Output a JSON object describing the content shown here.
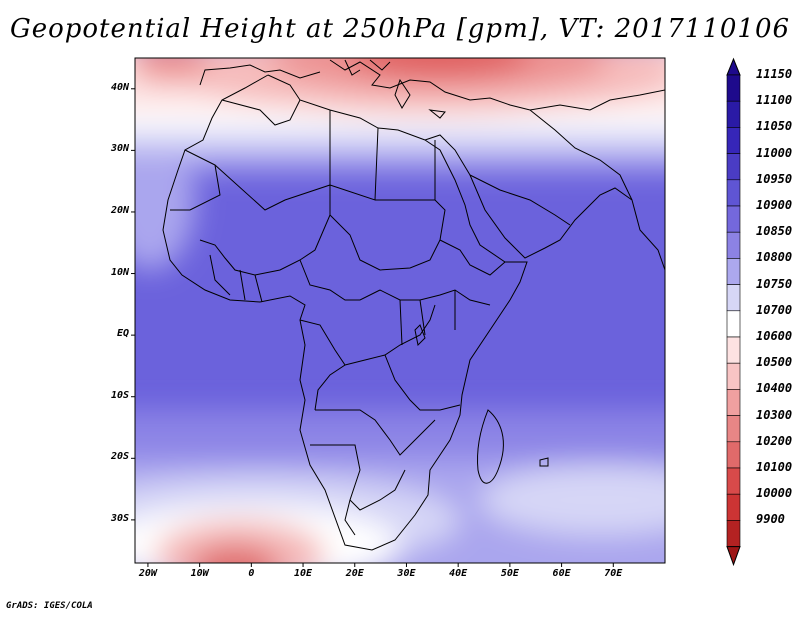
{
  "title": "Geopotential Height at 250hPa [gpm], VT: 2017110106",
  "credit": "GrADS: IGES/COLA",
  "lat_ticks": [
    {
      "label": "40N",
      "value": 40
    },
    {
      "label": "30N",
      "value": 30
    },
    {
      "label": "20N",
      "value": 20
    },
    {
      "label": "10N",
      "value": 10
    },
    {
      "label": "EQ",
      "value": 0
    },
    {
      "label": "10S",
      "value": -10
    },
    {
      "label": "20S",
      "value": -20
    },
    {
      "label": "30S",
      "value": -30
    }
  ],
  "lon_ticks": [
    {
      "label": "20W",
      "value": -20
    },
    {
      "label": "10W",
      "value": -10
    },
    {
      "label": "0",
      "value": 0
    },
    {
      "label": "10E",
      "value": 10
    },
    {
      "label": "20E",
      "value": 20
    },
    {
      "label": "30E",
      "value": 30
    },
    {
      "label": "40E",
      "value": 40
    },
    {
      "label": "50E",
      "value": 50
    },
    {
      "label": "60E",
      "value": 60
    },
    {
      "label": "70E",
      "value": 70
    }
  ],
  "colorbar": [
    {
      "label": "11150",
      "color": "#1e0a8c"
    },
    {
      "label": "11100",
      "color": "#2a1aa6"
    },
    {
      "label": "11050",
      "color": "#3626b8"
    },
    {
      "label": "11000",
      "color": "#4a3cc4"
    },
    {
      "label": "10950",
      "color": "#5f55d4"
    },
    {
      "label": "10900",
      "color": "#7468dc"
    },
    {
      "label": "10850",
      "color": "#8c82e4"
    },
    {
      "label": "10800",
      "color": "#aca8ee"
    },
    {
      "label": "10750",
      "color": "#d6d6f6"
    },
    {
      "label": "10700",
      "color": "#ffffff"
    },
    {
      "label": "10600",
      "color": "#fde2e2"
    },
    {
      "label": "10500",
      "color": "#f8c4c4"
    },
    {
      "label": "10400",
      "color": "#f0a0a0"
    },
    {
      "label": "10300",
      "color": "#e88686"
    },
    {
      "label": "10200",
      "color": "#e06a6a"
    },
    {
      "label": "10100",
      "color": "#d84a4a"
    },
    {
      "label": "10000",
      "color": "#cc3434"
    },
    {
      "label": "9900",
      "color": "#b42222"
    }
  ],
  "colorbar_end_top": "#1e0a8c",
  "colorbar_end_bottom": "#9e1616"
}
